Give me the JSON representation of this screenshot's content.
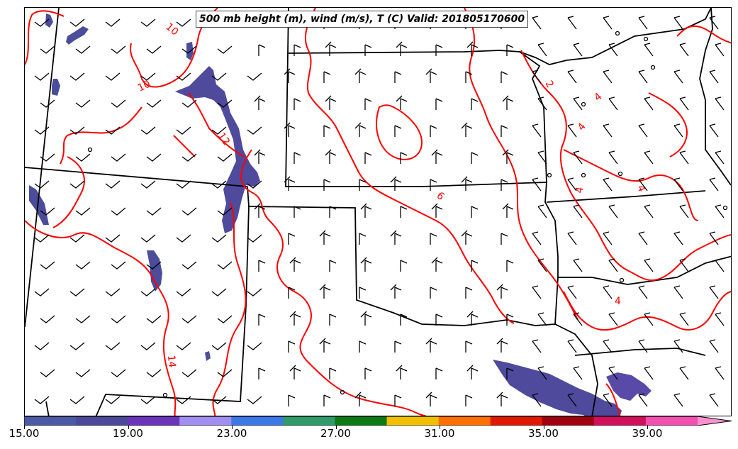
{
  "title": "500 mb height (m), wind (m/s), T (C) Valid: 201805170600",
  "colors": {
    "temperature_contour": "#ff0000",
    "state_borders": "#000000",
    "wind_barbs": "#000000",
    "shading_low": "#4b4c9a",
    "shading_mid": "#6a3fa8"
  },
  "colorbar": {
    "ticks": [
      "15.00",
      "19.00",
      "23.00",
      "27.00",
      "31.00",
      "35.00",
      "39.00"
    ],
    "segments": [
      "#4c5aa3",
      "#4a4a96",
      "#6a35b8",
      "#a08ef0",
      "#3e78e6",
      "#2f9a6a",
      "#0c7a14",
      "#f0c000",
      "#ff7000",
      "#e01a00",
      "#a00010",
      "#d0105a",
      "#f050b0",
      "#ff90d0"
    ]
  },
  "contour_labels": [
    "10",
    "10",
    "10",
    "12",
    "2",
    "4",
    "4",
    "4",
    "4",
    "4",
    "6",
    "6",
    "14"
  ],
  "icons": [
    "wind-barb-icon",
    "calm-circle-icon"
  ]
}
